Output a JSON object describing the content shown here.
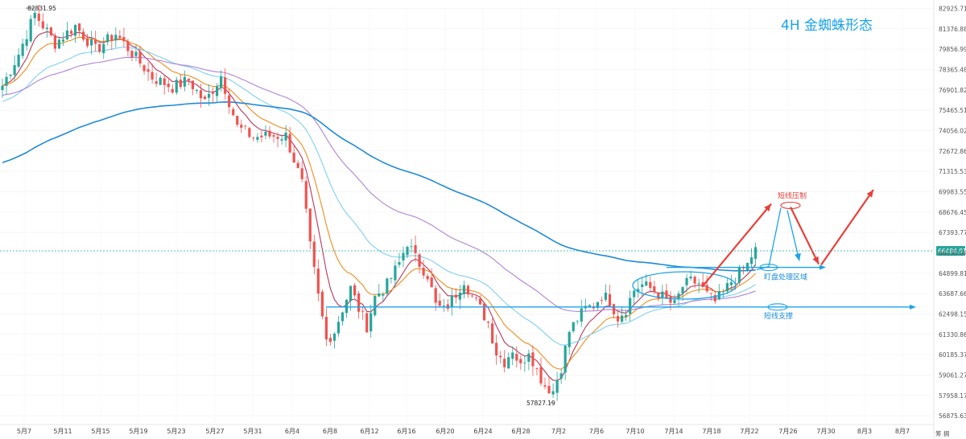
{
  "chart_data": {
    "type": "candlestick",
    "title": "4H 金蜘蛛形态",
    "pair_corner_label": "筹 拥",
    "ylim": [
      56500,
      83200
    ],
    "y_ticks": [
      "82925.71",
      "81376.88",
      "79856.99",
      "78365.48",
      "76901.82",
      "75465.51",
      "74056.02",
      "72672.86",
      "71315.53",
      "69983.55",
      "68676.45",
      "67393.77",
      "66135.04",
      "64899.81",
      "63687.66",
      "62498.15",
      "61330.86",
      "60185.37",
      "59061.27",
      "57958.17",
      "56875.63"
    ],
    "x_ticks": [
      "5月7",
      "5月11",
      "5月15",
      "5月19",
      "5月23",
      "5月27",
      "5月31",
      "6月4",
      "6月8",
      "6月12",
      "6月16",
      "6月20",
      "6月24",
      "6月28",
      "7月2",
      "7月6",
      "7月10",
      "7月14",
      "7月18",
      "7月22",
      "7月26",
      "7月30",
      "8月3",
      "8月7"
    ],
    "current_price": 66484.91,
    "current_price_label": "66484.91",
    "high_label": "82831.95",
    "high_value": 82831.95,
    "low_label": "57827.19",
    "low_value": 57827.19,
    "anchors": [
      [
        0,
        77200
      ],
      [
        4,
        79500
      ],
      [
        8,
        82500
      ],
      [
        13,
        80300
      ],
      [
        18,
        81600
      ],
      [
        23,
        79800
      ],
      [
        28,
        81000
      ],
      [
        33,
        79200
      ],
      [
        37,
        77800
      ],
      [
        42,
        77100
      ],
      [
        46,
        77600
      ],
      [
        50,
        76000
      ],
      [
        54,
        77900
      ],
      [
        58,
        74300
      ],
      [
        62,
        73600
      ],
      [
        66,
        73700
      ],
      [
        70,
        73700
      ],
      [
        74,
        70500
      ],
      [
        76,
        66500
      ],
      [
        78,
        63500
      ],
      [
        80,
        61000
      ],
      [
        82,
        61500
      ],
      [
        84,
        62800
      ],
      [
        86,
        64000
      ],
      [
        88,
        62800
      ],
      [
        90,
        61800
      ],
      [
        92,
        63500
      ],
      [
        95,
        64200
      ],
      [
        98,
        65500
      ],
      [
        100,
        66800
      ],
      [
        102,
        65800
      ],
      [
        105,
        64800
      ],
      [
        107,
        63000
      ],
      [
        109,
        62700
      ],
      [
        111,
        63300
      ],
      [
        114,
        64500
      ],
      [
        116,
        63500
      ],
      [
        118,
        62800
      ],
      [
        120,
        62000
      ],
      [
        122,
        60300
      ],
      [
        124,
        59800
      ],
      [
        126,
        60500
      ],
      [
        128,
        59500
      ],
      [
        130,
        60500
      ],
      [
        132,
        59300
      ],
      [
        134,
        58500
      ],
      [
        136,
        58200
      ],
      [
        138,
        59500
      ],
      [
        140,
        61500
      ],
      [
        142,
        62200
      ],
      [
        144,
        62800
      ],
      [
        146,
        63000
      ],
      [
        148,
        63600
      ],
      [
        150,
        63300
      ],
      [
        152,
        62300
      ],
      [
        154,
        62800
      ],
      [
        156,
        63900
      ],
      [
        158,
        64200
      ],
      [
        160,
        64000
      ],
      [
        162,
        63700
      ],
      [
        164,
        63300
      ],
      [
        166,
        63000
      ],
      [
        168,
        64100
      ],
      [
        170,
        64400
      ],
      [
        172,
        64300
      ],
      [
        174,
        63600
      ],
      [
        176,
        63200
      ],
      [
        178,
        63700
      ],
      [
        180,
        64400
      ],
      [
        182,
        64900
      ],
      [
        184,
        65400
      ],
      [
        186,
        66484.91
      ]
    ],
    "series": [
      {
        "name": "",
        "period": 7,
        "color": "#b8375a"
      },
      {
        "name": "",
        "period": 14,
        "color": "#f08c1a"
      },
      {
        "name": "",
        "period": 30,
        "color": "#7fd0f0"
      },
      {
        "name": "",
        "period": 55,
        "color": "#b082d8"
      },
      {
        "name": "",
        "period": 120,
        "color": "#1f8ad6"
      }
    ],
    "up_color": "#26a69a",
    "down_color": "#ef5350",
    "annotations": {
      "resistance_label": "短线压制",
      "range_label": "盯盘处理区域",
      "support_label": "短线支撑",
      "range_level": 65250,
      "support_level": 62900,
      "resistance_level": 69100
    }
  }
}
